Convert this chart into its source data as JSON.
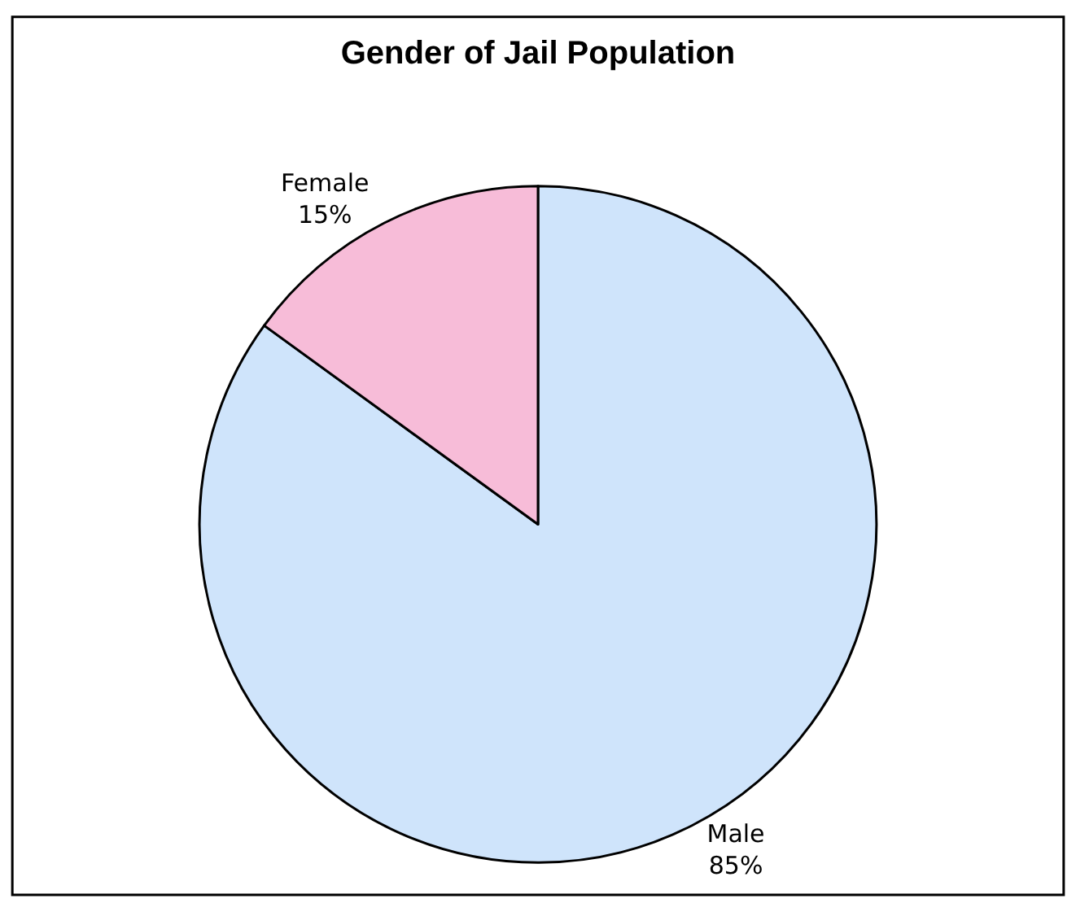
{
  "chart_data": {
    "type": "pie",
    "title": "Gender of Jail Population",
    "categories": [
      "Male",
      "Female"
    ],
    "values": [
      85,
      15
    ],
    "value_labels": [
      "85%",
      "15%"
    ],
    "colors": [
      "#cfe4fb",
      "#f7bcd8"
    ],
    "legend": false
  }
}
